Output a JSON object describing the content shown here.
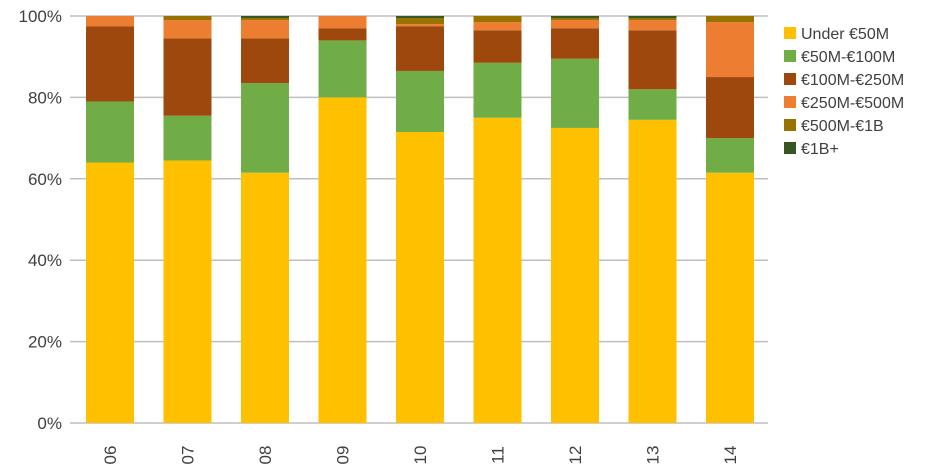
{
  "chart_data": {
    "type": "bar",
    "stacked": true,
    "normalized": true,
    "categories": [
      "06",
      "07",
      "08",
      "09",
      "10",
      "11",
      "12",
      "13",
      "14"
    ],
    "ylim": [
      0,
      100
    ],
    "y_ticks": [
      "0%",
      "20%",
      "40%",
      "60%",
      "80%",
      "100%"
    ],
    "y_tick_values": [
      0,
      20,
      40,
      60,
      80,
      100
    ],
    "grid": "horizontal",
    "legend_position": "right",
    "series": [
      {
        "name": "Under €50M",
        "color": "#FFC000",
        "values": [
          64,
          64.5,
          61.5,
          80,
          71.5,
          75,
          72.5,
          74.5,
          61.5
        ]
      },
      {
        "name": "€50M-€100M",
        "color": "#70AD47",
        "values": [
          15,
          11,
          22,
          14,
          15,
          13.5,
          17,
          7.5,
          8.5
        ]
      },
      {
        "name": "€100M-€250M",
        "color": "#9E480E",
        "values": [
          18.5,
          19,
          11,
          3,
          11,
          8,
          7.5,
          14.5,
          15
        ]
      },
      {
        "name": "€250M-€500M",
        "color": "#ED7D31",
        "values": [
          2.5,
          4.5,
          4.5,
          3,
          0.5,
          2,
          2,
          2.5,
          13.5
        ]
      },
      {
        "name": "€500M-€1B",
        "color": "#997300",
        "values": [
          0,
          1,
          0.5,
          0,
          1.5,
          1.5,
          0.5,
          0.5,
          1.5
        ]
      },
      {
        "name": "€1B+",
        "color": "#375623",
        "values": [
          0,
          0,
          0.5,
          0,
          0.5,
          0,
          0.5,
          0.5,
          0
        ]
      }
    ]
  }
}
